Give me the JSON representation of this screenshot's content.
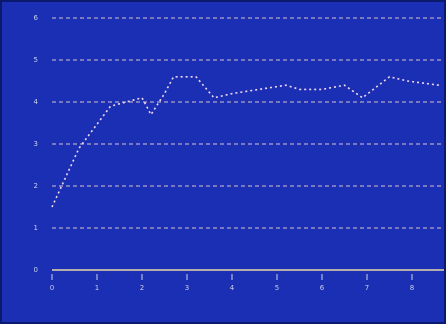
{
  "chart_data": {
    "type": "line",
    "x": [
      0,
      0.6,
      1.3,
      2,
      2.2,
      2.5,
      2.7,
      3.2,
      3.6,
      4,
      4.6,
      5.2,
      5.5,
      6,
      6.5,
      6.9,
      7.5,
      7.9,
      8.6
    ],
    "series": [
      {
        "color": "#f1d6ee",
        "values": [
          1.5,
          2.9,
          3.9,
          4.1,
          3.7,
          4.2,
          4.6,
          4.6,
          4.1,
          4.2,
          4.3,
          4.4,
          4.3,
          4.3,
          4.4,
          4.1,
          4.6,
          4.5,
          4.4
        ]
      }
    ],
    "xlim": [
      0,
      8.6
    ],
    "xticks": [
      0,
      1,
      2,
      3,
      4,
      5,
      6,
      7,
      8
    ],
    "ylim": [
      0,
      6
    ],
    "yticks": [
      0,
      1,
      2,
      3,
      4,
      5,
      6
    ],
    "grid": true
  }
}
